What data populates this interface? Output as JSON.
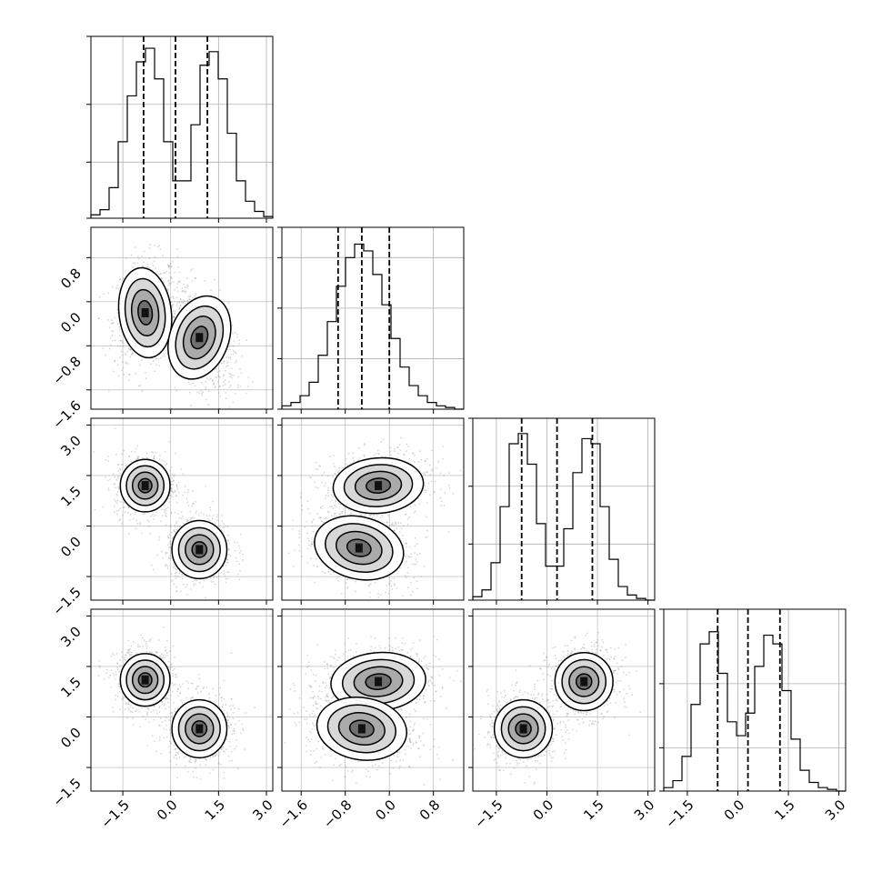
{
  "chart_data": {
    "type": "corner",
    "variables": [
      {
        "name": "",
        "range": [
          -2.5,
          3.2
        ],
        "ticks": [
          -1.5,
          0.0,
          1.5,
          3.0
        ],
        "tick_labels": [
          "−1.5",
          "0.0",
          "1.5",
          "3.0"
        ],
        "quantiles": [
          -0.85,
          0.15,
          1.15
        ]
      },
      {
        "name": "",
        "range": [
          -1.95,
          1.35
        ],
        "ticks": [
          -1.6,
          -0.8,
          0.0,
          0.8
        ],
        "tick_labels": [
          "−1.6",
          "−0.8",
          "0.0",
          "0.8"
        ],
        "quantiles": [
          -0.93,
          -0.5,
          0.0
        ]
      },
      {
        "name": "",
        "range": [
          -2.2,
          3.2
        ],
        "ticks": [
          -1.5,
          0.0,
          1.5,
          3.0
        ],
        "tick_labels": [
          "−1.5",
          "0.0",
          "1.5",
          "3.0"
        ],
        "quantiles": [
          -0.75,
          0.3,
          1.35
        ]
      },
      {
        "name": "",
        "range": [
          -2.2,
          3.2
        ],
        "ticks": [
          -1.5,
          0.0,
          1.5,
          3.0
        ],
        "tick_labels": [
          "−1.5",
          "0.0",
          "1.5",
          "3.0"
        ],
        "quantiles": [
          -0.6,
          0.3,
          1.25
        ]
      }
    ],
    "histograms": [
      {
        "bins": 20,
        "counts": [
          0.02,
          0.05,
          0.18,
          0.45,
          0.72,
          0.92,
          1.0,
          0.82,
          0.45,
          0.22,
          0.22,
          0.55,
          0.9,
          0.98,
          0.82,
          0.5,
          0.22,
          0.1,
          0.04,
          0.01
        ],
        "ylim": [
          0,
          1.07
        ],
        "ygrid": [
          0.33,
          0.67
        ]
      },
      {
        "bins": 20,
        "counts": [
          0.02,
          0.04,
          0.08,
          0.16,
          0.32,
          0.52,
          0.73,
          0.9,
          0.98,
          0.94,
          0.8,
          0.62,
          0.42,
          0.25,
          0.14,
          0.08,
          0.04,
          0.02,
          0.01,
          0.0
        ],
        "ylim": [
          0,
          1.08
        ],
        "ygrid": [
          0.3,
          0.6,
          0.9
        ]
      },
      {
        "bins": 20,
        "counts": [
          0.02,
          0.06,
          0.22,
          0.55,
          0.92,
          0.98,
          0.8,
          0.45,
          0.2,
          0.2,
          0.42,
          0.75,
          0.95,
          0.92,
          0.55,
          0.24,
          0.08,
          0.03,
          0.01,
          0.0
        ],
        "ylim": [
          0,
          1.07
        ],
        "ygrid": [
          0.33,
          0.67
        ]
      },
      {
        "bins": 20,
        "counts": [
          0.02,
          0.06,
          0.2,
          0.5,
          0.85,
          0.92,
          0.68,
          0.4,
          0.32,
          0.45,
          0.72,
          0.9,
          0.85,
          0.58,
          0.3,
          0.12,
          0.05,
          0.02,
          0.01,
          0.0
        ],
        "ylim": [
          0,
          1.05
        ],
        "ygrid": [
          0.25,
          0.62
        ]
      }
    ],
    "panels": [
      {
        "x_var": 0,
        "y_var": 1,
        "blobs": [
          {
            "cx": -0.8,
            "cy": -0.2,
            "sx": 0.4,
            "sy": 0.4,
            "rho": 0.15
          },
          {
            "cx": 0.9,
            "cy": -0.65,
            "sx": 0.45,
            "sy": 0.38,
            "rho": -0.45
          }
        ]
      },
      {
        "x_var": 0,
        "y_var": 2,
        "blobs": [
          {
            "cx": -0.8,
            "cy": 1.2,
            "sx": 0.38,
            "sy": 0.38,
            "rho": 0.0
          },
          {
            "cx": 0.9,
            "cy": -0.7,
            "sx": 0.42,
            "sy": 0.42,
            "rho": 0.0
          }
        ]
      },
      {
        "x_var": 1,
        "y_var": 2,
        "blobs": [
          {
            "cx": -0.2,
            "cy": 1.2,
            "sx": 0.4,
            "sy": 0.4,
            "rho": 0.1
          },
          {
            "cx": -0.55,
            "cy": -0.65,
            "sx": 0.4,
            "sy": 0.45,
            "rho": -0.3
          }
        ]
      },
      {
        "x_var": 0,
        "y_var": 3,
        "blobs": [
          {
            "cx": -0.8,
            "cy": 1.1,
            "sx": 0.38,
            "sy": 0.38,
            "rho": 0.0
          },
          {
            "cx": 0.9,
            "cy": -0.35,
            "sx": 0.42,
            "sy": 0.42,
            "rho": 0.0
          }
        ]
      },
      {
        "x_var": 1,
        "y_var": 3,
        "blobs": [
          {
            "cx": -0.2,
            "cy": 1.05,
            "sx": 0.42,
            "sy": 0.42,
            "rho": 0.1
          },
          {
            "cx": -0.5,
            "cy": -0.35,
            "sx": 0.4,
            "sy": 0.45,
            "rho": -0.2
          }
        ]
      },
      {
        "x_var": 2,
        "y_var": 3,
        "blobs": [
          {
            "cx": -0.7,
            "cy": -0.35,
            "sx": 0.42,
            "sy": 0.42,
            "rho": 0.0
          },
          {
            "cx": 1.1,
            "cy": 1.05,
            "sx": 0.42,
            "sy": 0.42,
            "rho": 0.0
          }
        ]
      }
    ],
    "grid": true,
    "colors": {
      "points": "#8c8c8c",
      "contour": "#000000",
      "grid": "#b0b0b0"
    }
  }
}
